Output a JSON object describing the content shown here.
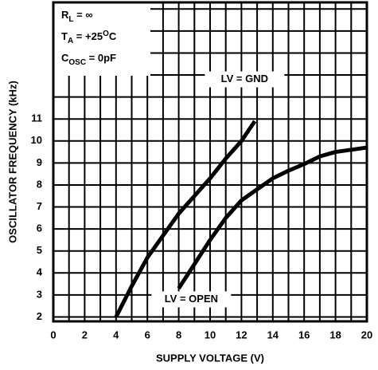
{
  "chart_data": {
    "type": "line",
    "x_label": "SUPPLY VOLTAGE (V)",
    "y_label": "OSCILLATOR FREQUENCY (kHz)",
    "conditions": [
      {
        "symbol": "R",
        "sub": "L",
        "rest": " = ∞"
      },
      {
        "symbol": "T",
        "sub": "A",
        "rest": " = +25",
        "sup": "O",
        "end": "C"
      },
      {
        "symbol": "C",
        "sub": "OSC",
        "rest": " = 0pF"
      }
    ],
    "xlim": [
      0,
      20
    ],
    "xticks": [
      0,
      2,
      4,
      6,
      8,
      10,
      12,
      14,
      16,
      18,
      20
    ],
    "ylim": [
      1.8,
      16.3
    ],
    "yticks": [
      2,
      3,
      4,
      5,
      6,
      7,
      8,
      9,
      10,
      11
    ],
    "grid": true,
    "series": [
      {
        "name": "LV = GND",
        "color": "#000000",
        "x": [
          4,
          5,
          6,
          7,
          8,
          9,
          10,
          11,
          12,
          12.85
        ],
        "values": [
          2.0,
          3.4,
          4.7,
          5.7,
          6.7,
          7.5,
          8.3,
          9.2,
          10.0,
          10.9
        ]
      },
      {
        "name": "LV = OPEN",
        "color": "#000000",
        "x": [
          8,
          9,
          10,
          11,
          12,
          13,
          14,
          15,
          16,
          17,
          18,
          19,
          20
        ],
        "values": [
          3.3,
          4.4,
          5.5,
          6.5,
          7.3,
          7.8,
          8.3,
          8.65,
          8.95,
          9.3,
          9.5,
          9.6,
          9.7
        ]
      }
    ]
  }
}
